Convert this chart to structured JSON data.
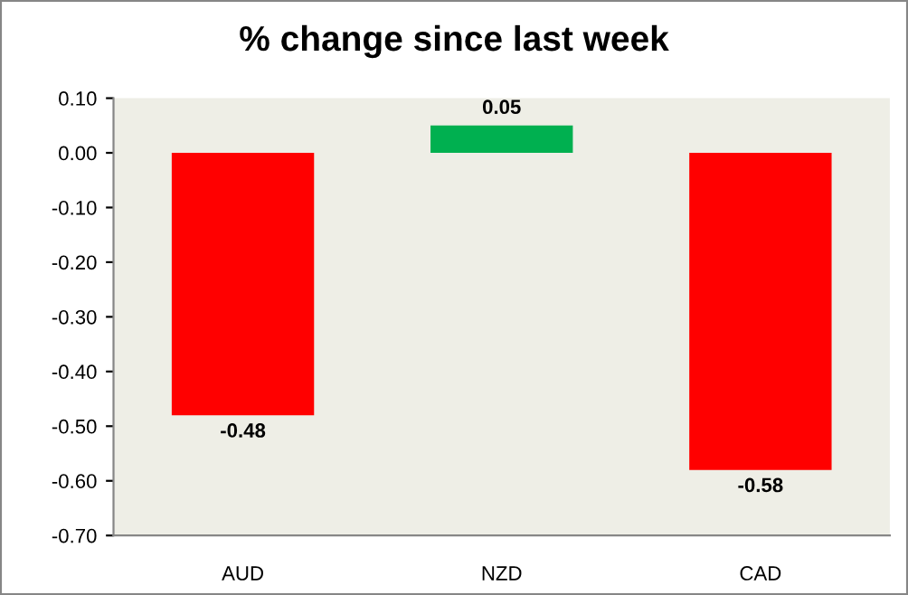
{
  "chart_data": {
    "type": "bar",
    "title": "% change since last week",
    "categories": [
      "AUD",
      "NZD",
      "CAD"
    ],
    "values": [
      -0.48,
      0.05,
      -0.58
    ],
    "colors": [
      "#ff0000",
      "#00b050",
      "#ff0000"
    ],
    "ylim": [
      -0.7,
      0.1
    ],
    "yticks": [
      {
        "value": 0.1,
        "label": "0.10"
      },
      {
        "value": 0.0,
        "label": "0.00"
      },
      {
        "value": -0.1,
        "label": "-0.10"
      },
      {
        "value": -0.2,
        "label": "-0.20"
      },
      {
        "value": -0.3,
        "label": "-0.30"
      },
      {
        "value": -0.4,
        "label": "-0.40"
      },
      {
        "value": -0.5,
        "label": "-0.50"
      },
      {
        "value": -0.6,
        "label": "-0.60"
      },
      {
        "value": -0.7,
        "label": "-0.70"
      }
    ],
    "grid": false,
    "legend": false,
    "data_labels": true
  }
}
